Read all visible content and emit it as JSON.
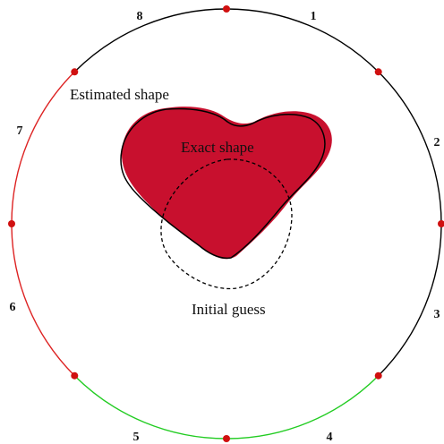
{
  "figure": {
    "labels": {
      "estimated": "Estimated shape",
      "exact": "Exact shape",
      "initial": "Initial guess"
    },
    "segments": [
      {
        "number": "1",
        "color": "#000000"
      },
      {
        "number": "2",
        "color": "#000000"
      },
      {
        "number": "3",
        "color": "#000000"
      },
      {
        "number": "4",
        "color": "#22cc22"
      },
      {
        "number": "5",
        "color": "#22cc22"
      },
      {
        "number": "6",
        "color": "#dd2222"
      },
      {
        "number": "7",
        "color": "#dd2222"
      },
      {
        "number": "8",
        "color": "#000000"
      }
    ],
    "colors": {
      "exact_fill": "#c8102e",
      "exact_label": "#f3e3b0",
      "marker": "#d01010",
      "outline": "#000000"
    }
  }
}
